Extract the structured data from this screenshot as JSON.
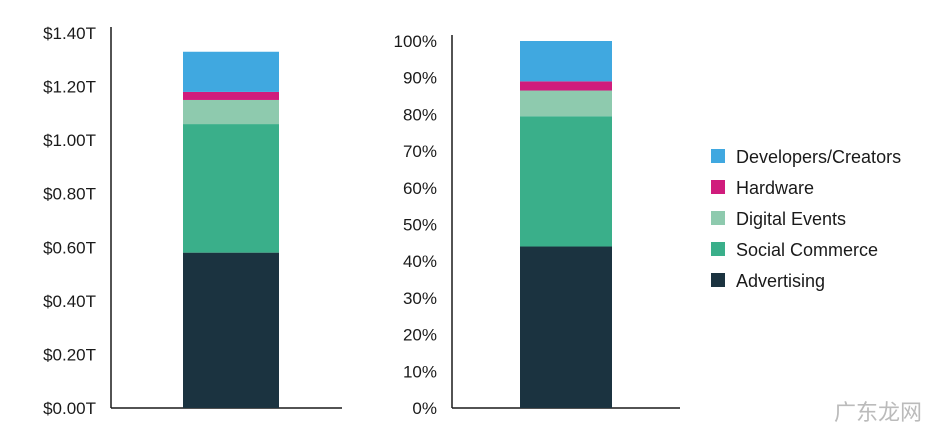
{
  "colors": {
    "Developers/Creators": "#40a8e0",
    "Hardware": "#d01c7c",
    "Digital Events": "#8ecaae",
    "Social Commerce": "#3aaf8a",
    "Advertising": "#1b3340"
  },
  "chart_data": [
    {
      "type": "bar",
      "stacked": true,
      "categories": [
        ""
      ],
      "series": [
        {
          "name": "Advertising",
          "values": [
            0.58
          ]
        },
        {
          "name": "Social Commerce",
          "values": [
            0.48
          ]
        },
        {
          "name": "Digital Events",
          "values": [
            0.09
          ]
        },
        {
          "name": "Hardware",
          "values": [
            0.03
          ]
        },
        {
          "name": "Developers/Creators",
          "values": [
            0.15
          ]
        }
      ],
      "yticks": [
        "$0.00T",
        "$0.20T",
        "$0.40T",
        "$0.60T",
        "$0.80T",
        "$1.00T",
        "$1.20T",
        "$1.40T"
      ],
      "ylim": [
        0,
        1.4
      ],
      "title": "",
      "xlabel": "",
      "ylabel": ""
    },
    {
      "type": "bar",
      "stacked": true,
      "categories": [
        ""
      ],
      "series": [
        {
          "name": "Advertising",
          "values": [
            44
          ]
        },
        {
          "name": "Social Commerce",
          "values": [
            35.5
          ]
        },
        {
          "name": "Digital Events",
          "values": [
            7
          ]
        },
        {
          "name": "Hardware",
          "values": [
            2.5
          ]
        },
        {
          "name": "Developers/Creators",
          "values": [
            11
          ]
        }
      ],
      "yticks": [
        "0%",
        "10%",
        "20%",
        "30%",
        "40%",
        "50%",
        "60%",
        "70%",
        "80%",
        "90%",
        "100%"
      ],
      "ylim": [
        0,
        100
      ],
      "title": "",
      "xlabel": "",
      "ylabel": ""
    }
  ],
  "legend": {
    "position": "right",
    "items": [
      "Developers/Creators",
      "Hardware",
      "Digital Events",
      "Social Commerce",
      "Advertising"
    ]
  },
  "watermark": "广东龙网"
}
